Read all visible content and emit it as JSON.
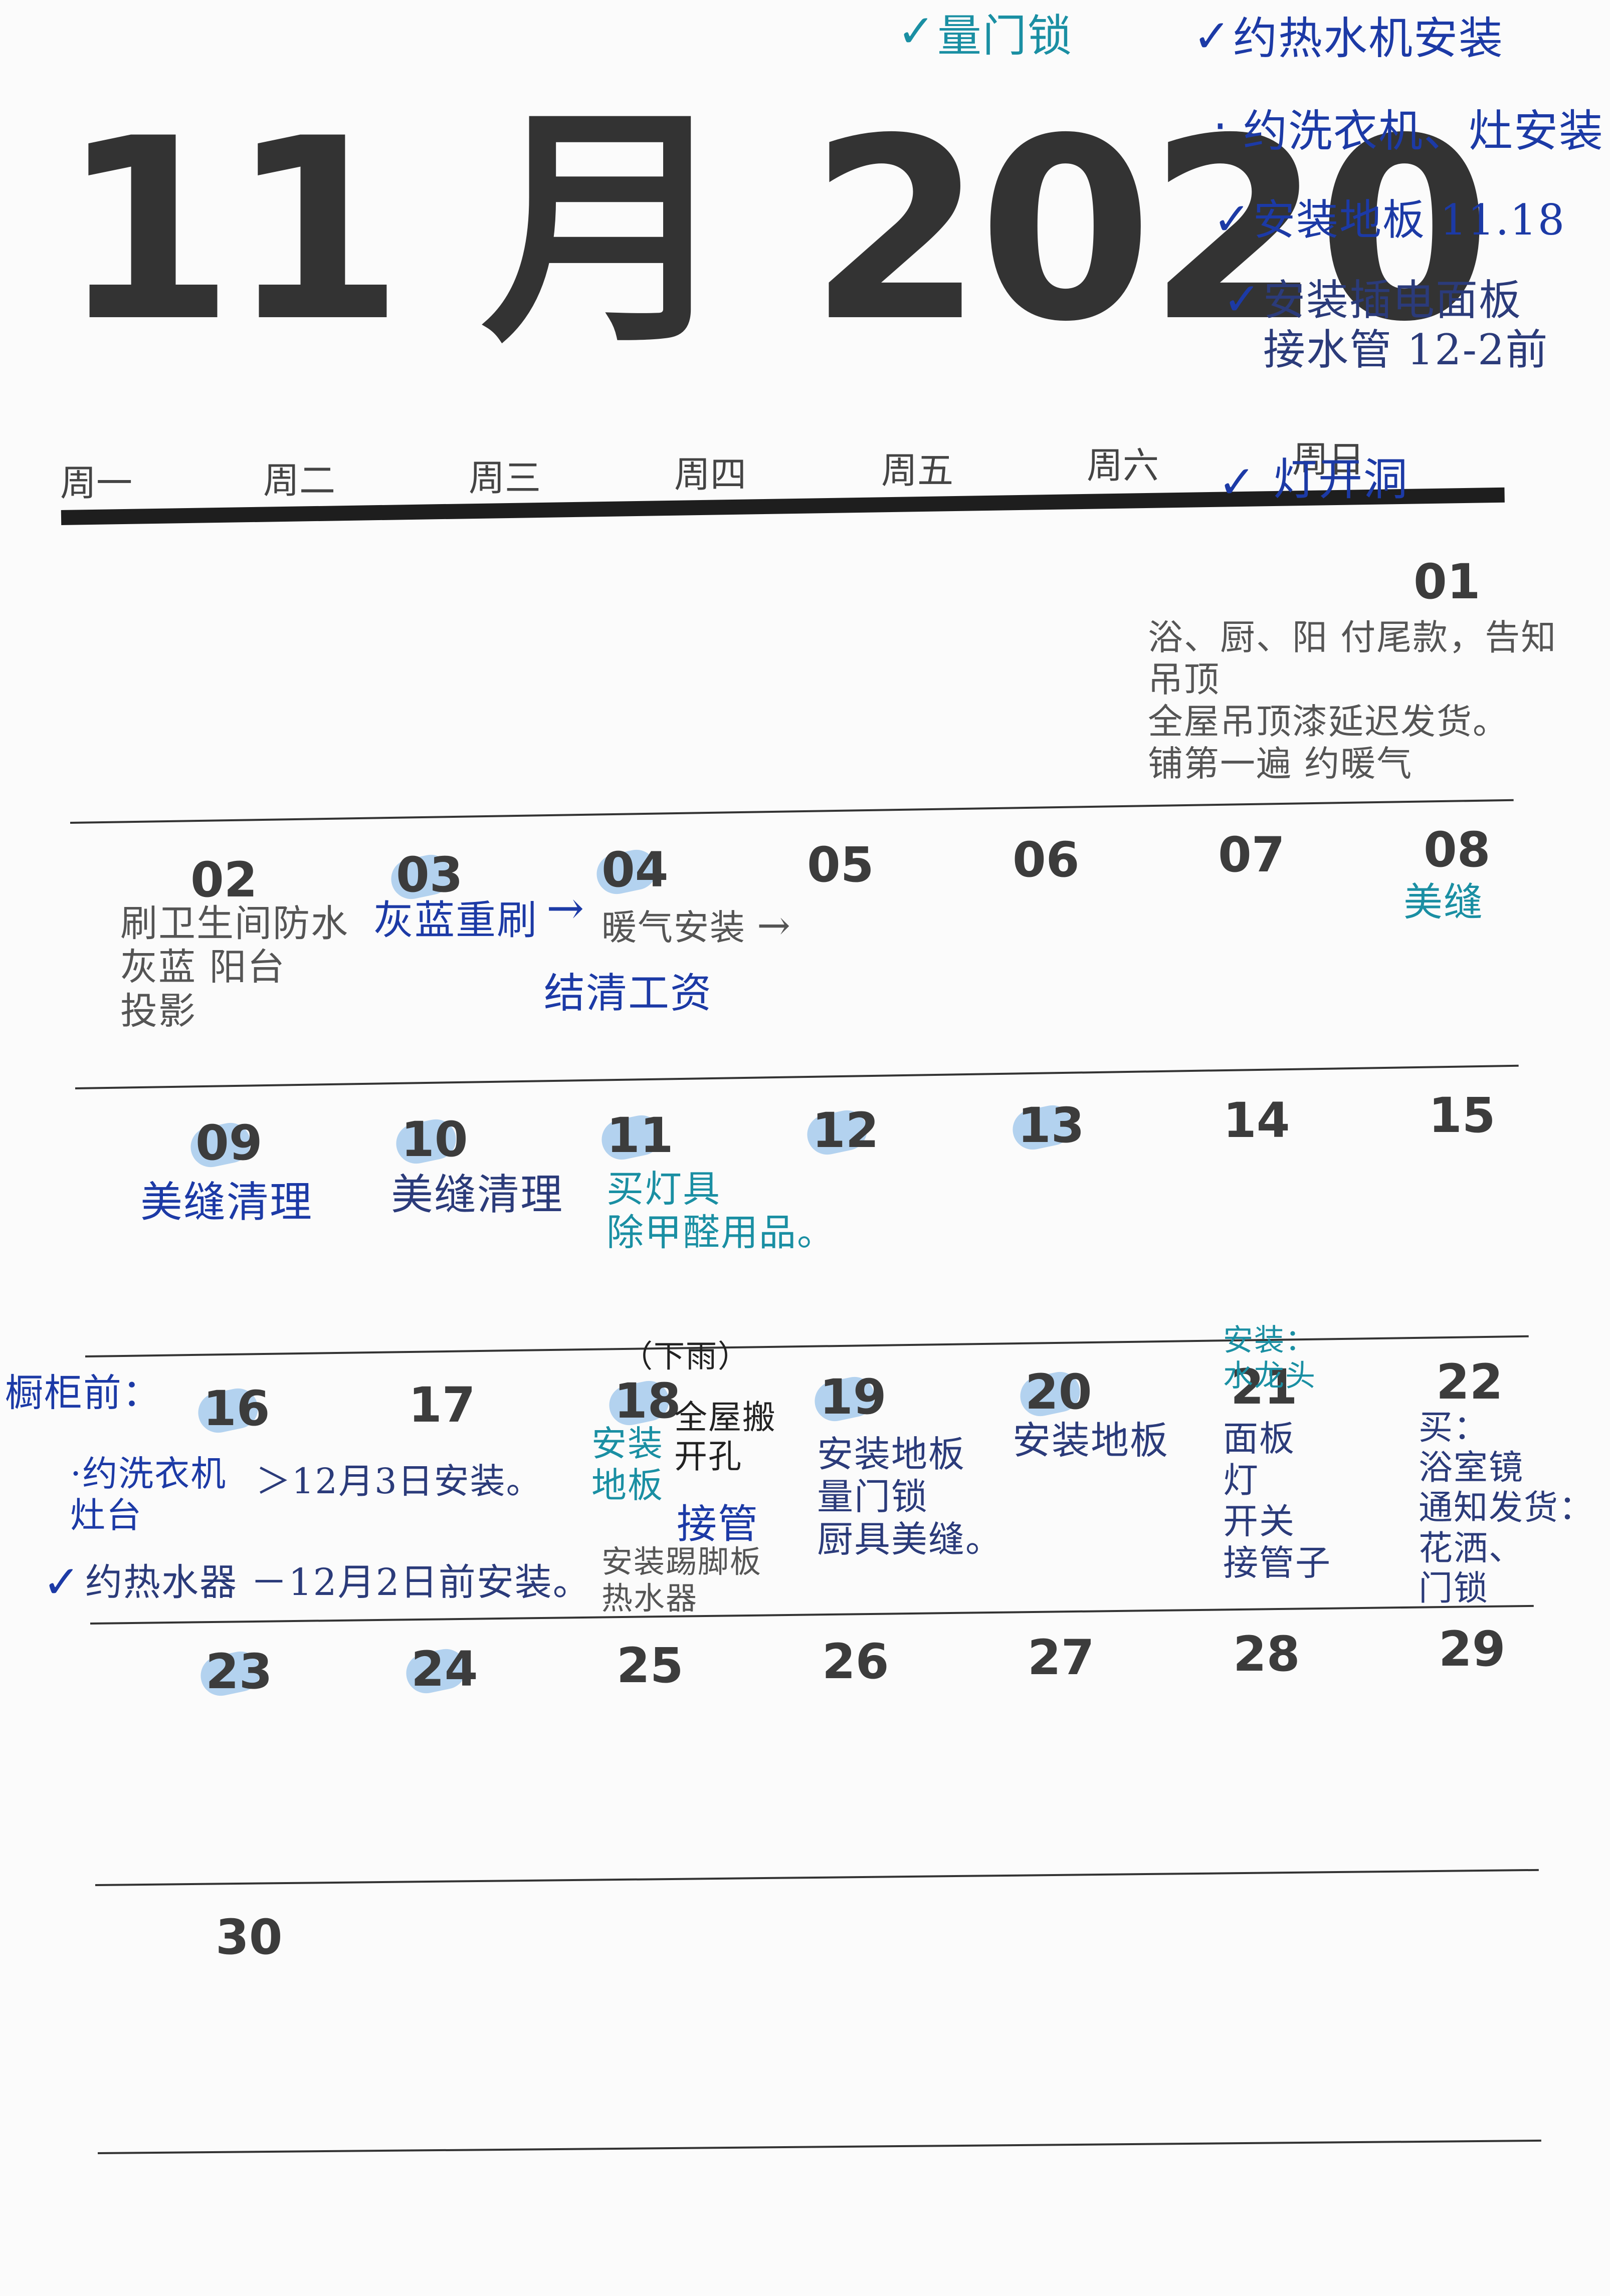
{
  "title": "11 月 2020",
  "weekdays": [
    "周一",
    "周二",
    "周三",
    "周四",
    "周五",
    "周六",
    "周日"
  ],
  "days": [
    "01",
    "02",
    "03",
    "04",
    "05",
    "06",
    "07",
    "08",
    "09",
    "10",
    "11",
    "12",
    "13",
    "14",
    "15",
    "16",
    "17",
    "18",
    "19",
    "20",
    "21",
    "22",
    "23",
    "24",
    "25",
    "26",
    "27",
    "28",
    "29",
    "30"
  ],
  "top_checklist": {
    "item1": "量门锁",
    "item2": "约热水机安装",
    "item3": "约洗衣机、灶安装",
    "item4": "安装地板 11.18",
    "item5": "安装插电面板\n接水管 12-2前",
    "item6": "灯开洞",
    "check_mark": "✓",
    "bullet": "·"
  },
  "notes": {
    "d01": "浴、厨、阳  付尾款，告知\n吊顶\n全屋吊顶漆延迟发货。\n铺第一遍  约暖气",
    "d02": "刷卫生间防水\n灰蓝      阳台\n投影",
    "d03": "灰蓝重刷",
    "d04": "暖气安装",
    "d04b": "结清工资",
    "arrow": "→",
    "d08": "美缝",
    "d09": "美缝清理",
    "d10": "美缝清理",
    "d11": "买灯具\n除甲醛用品。",
    "before_cabinet": "橱柜前：",
    "washer": "·约洗衣机\n    灶台",
    "washer_date": "＞12月3日安装。",
    "heater": "约热水器 －12月2日前安装。",
    "d18_weather": "（下雨）",
    "d18_a": "安装\n地板",
    "d18_b": "全屋搬\n开孔",
    "d18_c": "接管",
    "d18_d": "安装踢脚板\n热水器",
    "d19": "安装地板\n量门锁\n厨具美缝。",
    "d20": "安装地板",
    "d21_top": "安装：\n水龙头",
    "d21": "面板\n灯\n开关\n接管子",
    "d22": "买：\n浴室镜\n通知发货：\n花洒、\n门锁"
  }
}
